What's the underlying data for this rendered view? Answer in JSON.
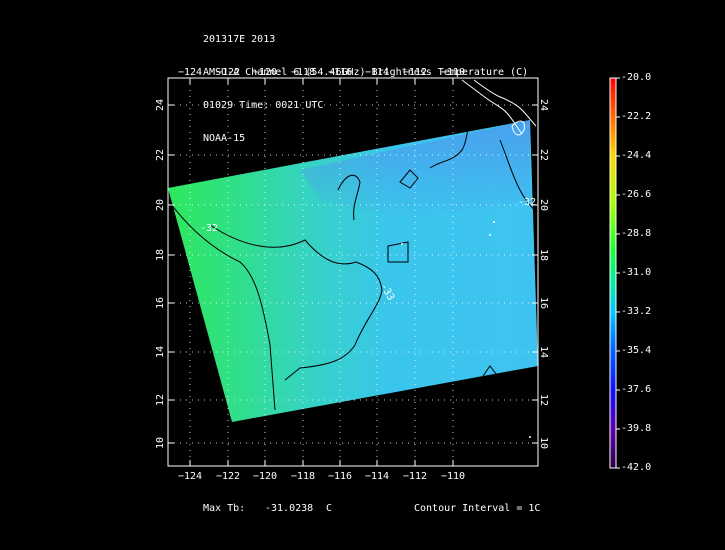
{
  "header": {
    "line1": "201317E 2013",
    "line2": "AMSU-A Channel 6 (54.46GHz) Brightness Temperature (C)",
    "line3": "01029 Time: 0021 UTC",
    "line4": "NOAA-15"
  },
  "axes": {
    "lon_ticks_top": [
      "−124",
      "−122",
      "−120",
      "−118",
      "−116",
      "−114",
      "−112",
      "−110"
    ],
    "lon_ticks_bottom": [
      "−124",
      "−122",
      "−120",
      "−118",
      "−116",
      "−114",
      "−112",
      "−110"
    ],
    "lat_ticks_left": [
      "24",
      "22",
      "20",
      "18",
      "16",
      "14",
      "12",
      "10"
    ],
    "lat_ticks_right": [
      "24",
      "22",
      "20",
      "18",
      "16",
      "14",
      "12",
      "10"
    ]
  },
  "contour_labels": [
    "-32",
    "-33",
    "-32"
  ],
  "colorbar": {
    "labels": [
      "-20.0",
      "-22.2",
      "-24.4",
      "-26.6",
      "-28.8",
      "-31.0",
      "-33.2",
      "-35.4",
      "-37.6",
      "-39.8",
      "-42.0"
    ]
  },
  "footer": {
    "max_label": "Max Tb:",
    "max_value": "-31.0238",
    "max_unit": "C",
    "contour_interval": "Contour Interval = 1C"
  },
  "colors": {
    "swath_warm": "#2fe06a",
    "swath_cool": "#39c6f0",
    "swath_cold": "#4aa0ee"
  }
}
